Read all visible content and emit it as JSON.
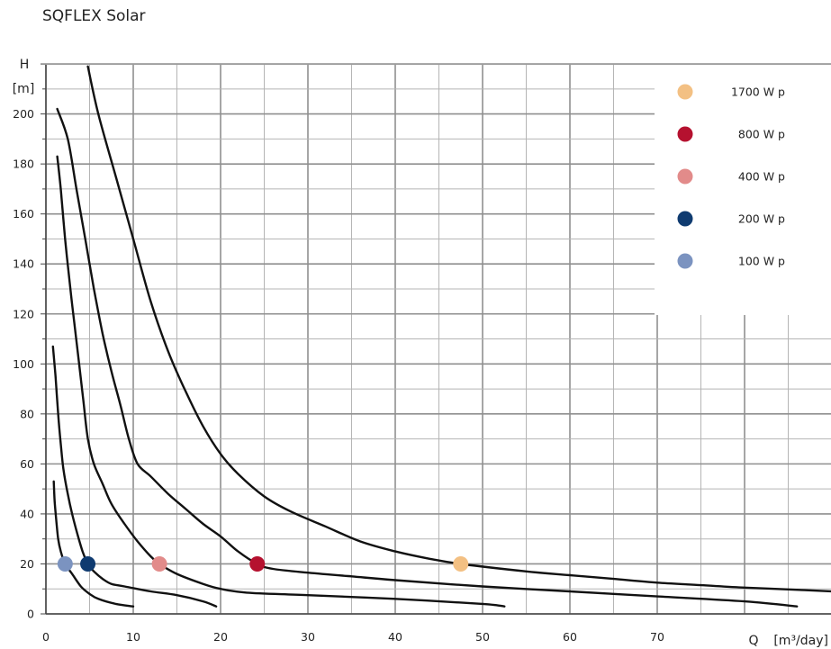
{
  "chart_data": {
    "type": "line",
    "title": "SQFLEX Solar",
    "ylabel": "H",
    "yunit": "[m]",
    "xlabel": "Q",
    "xunit": "[m³/day]",
    "xlim": [
      0,
      90
    ],
    "ylim": [
      0,
      220
    ],
    "xticks": [
      0,
      10,
      20,
      30,
      40,
      50,
      60,
      70
    ],
    "yticks": [
      0,
      20,
      40,
      60,
      80,
      100,
      120,
      140,
      160,
      180,
      200
    ],
    "grid": true,
    "legend_position": "top-right",
    "series": [
      {
        "name": "1700 W p",
        "color": "#F3C083",
        "marker": {
          "x": 47.5,
          "y": 20
        },
        "points": [
          [
            4.8,
            219
          ],
          [
            6,
            200
          ],
          [
            8,
            175
          ],
          [
            10,
            150
          ],
          [
            12,
            125
          ],
          [
            14,
            105
          ],
          [
            16,
            89
          ],
          [
            18,
            75
          ],
          [
            20,
            64
          ],
          [
            22,
            56
          ],
          [
            25,
            47
          ],
          [
            28,
            41
          ],
          [
            32,
            35
          ],
          [
            36,
            29
          ],
          [
            40,
            25
          ],
          [
            44,
            22
          ],
          [
            47.5,
            20
          ],
          [
            55,
            17
          ],
          [
            60,
            15.5
          ],
          [
            65,
            14
          ],
          [
            70,
            12.5
          ],
          [
            75,
            11.5
          ],
          [
            80,
            10.5
          ],
          [
            85,
            9.8
          ],
          [
            90,
            9
          ]
        ]
      },
      {
        "name": "800 W p",
        "color": "#B5112F",
        "marker": {
          "x": 24.2,
          "y": 20
        },
        "points": [
          [
            1.3,
            202
          ],
          [
            2.5,
            190
          ],
          [
            3.5,
            170
          ],
          [
            4.5,
            150
          ],
          [
            5.5,
            130
          ],
          [
            6.5,
            112
          ],
          [
            7.5,
            97
          ],
          [
            8.5,
            84
          ],
          [
            9.5,
            70
          ],
          [
            10.5,
            60
          ],
          [
            12,
            55
          ],
          [
            14,
            48
          ],
          [
            16,
            42
          ],
          [
            18,
            36
          ],
          [
            20,
            31
          ],
          [
            22,
            25
          ],
          [
            24.2,
            20
          ],
          [
            26,
            18
          ],
          [
            30,
            16.5
          ],
          [
            35,
            15
          ],
          [
            40,
            13.5
          ],
          [
            50,
            11
          ],
          [
            60,
            9
          ],
          [
            70,
            7
          ],
          [
            80,
            5
          ],
          [
            86,
            3
          ]
        ]
      },
      {
        "name": "400 W p",
        "color": "#E28B8A",
        "marker": {
          "x": 13,
          "y": 20
        },
        "points": [
          [
            1.3,
            183
          ],
          [
            1.7,
            170
          ],
          [
            2.2,
            150
          ],
          [
            2.8,
            130
          ],
          [
            3.3,
            115
          ],
          [
            3.8,
            100
          ],
          [
            4.3,
            85
          ],
          [
            4.8,
            70
          ],
          [
            5.5,
            60
          ],
          [
            6.5,
            52
          ],
          [
            7.5,
            44
          ],
          [
            9,
            36
          ],
          [
            10.5,
            29
          ],
          [
            12,
            23
          ],
          [
            13,
            20
          ],
          [
            15,
            16
          ],
          [
            18,
            12
          ],
          [
            20,
            10
          ],
          [
            23,
            8.5
          ],
          [
            30,
            7.5
          ],
          [
            40,
            6
          ],
          [
            50,
            4
          ],
          [
            52.5,
            3
          ]
        ]
      },
      {
        "name": "200 W p",
        "color": "#0F3B70",
        "marker": {
          "x": 4.8,
          "y": 20
        },
        "points": [
          [
            0.8,
            107
          ],
          [
            1.1,
            95
          ],
          [
            1.4,
            80
          ],
          [
            1.7,
            68
          ],
          [
            2,
            58
          ],
          [
            2.5,
            48
          ],
          [
            3,
            40
          ],
          [
            3.6,
            32
          ],
          [
            4.2,
            25
          ],
          [
            4.8,
            20
          ],
          [
            5.5,
            17
          ],
          [
            6.5,
            14
          ],
          [
            7.5,
            12
          ],
          [
            9,
            11
          ],
          [
            12,
            9
          ],
          [
            15,
            7.5
          ],
          [
            18,
            5
          ],
          [
            19.5,
            3
          ]
        ]
      },
      {
        "name": "100 W p",
        "color": "#7B93C0",
        "marker": {
          "x": 2.2,
          "y": 20
        },
        "points": [
          [
            0.9,
            53
          ],
          [
            1,
            45
          ],
          [
            1.2,
            37
          ],
          [
            1.4,
            30
          ],
          [
            1.7,
            25
          ],
          [
            2.2,
            20
          ],
          [
            3,
            16
          ],
          [
            4,
            11
          ],
          [
            5,
            8
          ],
          [
            6,
            6
          ],
          [
            8,
            4
          ],
          [
            10,
            3
          ]
        ]
      }
    ]
  }
}
